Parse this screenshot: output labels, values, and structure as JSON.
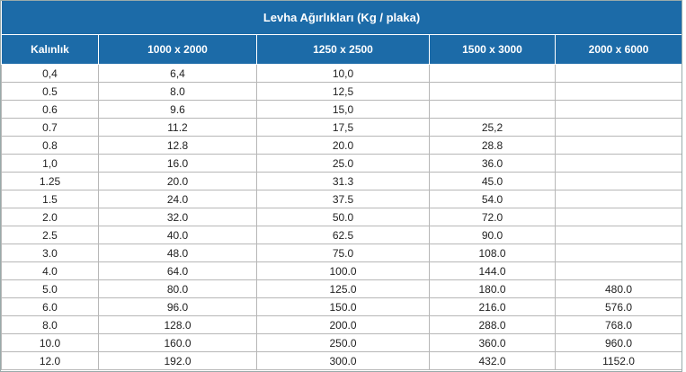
{
  "table": {
    "title": "Levha Ağırlıkları  (Kg / plaka)",
    "columns": [
      "Kalınlık",
      "1000 x 2000",
      "1250 x 2500",
      "1500 x 3000",
      "2000 x 6000"
    ],
    "rows": [
      [
        "0,4",
        "6,4",
        "10,0"
      ],
      [
        "0.5",
        "8.0",
        "12,5"
      ],
      [
        "0.6",
        "9.6",
        "15,0"
      ],
      [
        "0.7",
        "11.2",
        "17,5",
        "25,2"
      ],
      [
        "0.8",
        "12.8",
        "20.0",
        "28.8"
      ],
      [
        "1,0",
        "16.0",
        "25.0",
        "36.0"
      ],
      [
        "1.25",
        "20.0",
        "31.3",
        "45.0"
      ],
      [
        "1.5",
        "24.0",
        "37.5",
        "54.0"
      ],
      [
        "2.0",
        "32.0",
        "50.0",
        "72.0"
      ],
      [
        "2.5",
        "40.0",
        "62.5",
        "90.0"
      ],
      [
        "3.0",
        "48.0",
        "75.0",
        "108.0"
      ],
      [
        "4.0",
        "64.0",
        "100.0",
        "144.0"
      ],
      [
        "5.0",
        "80.0",
        "125.0",
        "180.0",
        "480.0"
      ],
      [
        "6.0",
        "96.0",
        "150.0",
        "216.0",
        "576.0"
      ],
      [
        "8.0",
        "128.0",
        "200.0",
        "288.0",
        "768.0"
      ],
      [
        "10.0",
        "160.0",
        "250.0",
        "360.0",
        "960.0"
      ],
      [
        "12.0",
        "192.0",
        "300.0",
        "432.0",
        "1152.0"
      ]
    ]
  }
}
